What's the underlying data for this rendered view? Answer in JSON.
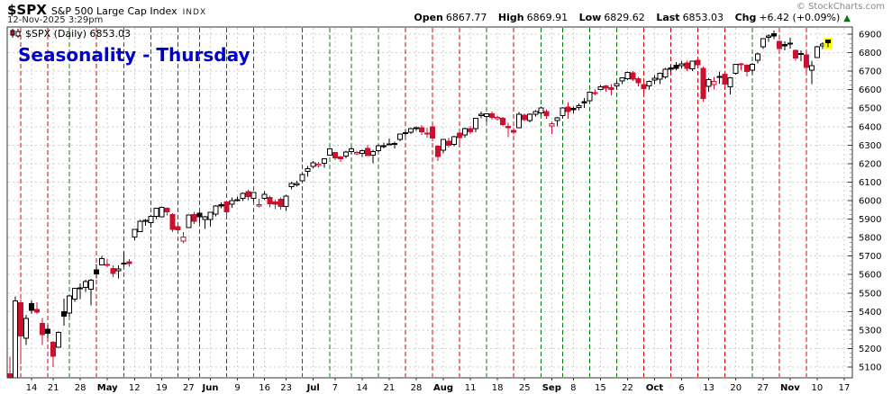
{
  "header": {
    "symbol": "$SPX",
    "name": "S&P 500 Large Cap Index",
    "exchange": "INDX",
    "datetime": "12-Nov-2025 3:29pm",
    "copyright": "© StockCharts.com",
    "quote": {
      "open_label": "Open",
      "open": "6867.77",
      "high_label": "High",
      "high": "6869.91",
      "low_label": "Low",
      "low": "6829.62",
      "last_label": "Last",
      "last": "6853.03",
      "chg_label": "Chg",
      "chg": "+6.42 (+0.09%)",
      "direction": "up",
      "arrow": "▲"
    }
  },
  "legend": {
    "text": "$SPX (Daily) 6853.03"
  },
  "annotation": {
    "text": "Seasonality - Thursday"
  },
  "colors": {
    "candle_down": "#cc102f",
    "candle_up_outline": "#000000",
    "thursday_up": "#008000",
    "thursday_down": "#e00000",
    "grid": "#cfcfcf",
    "axis": "#333333",
    "annotation_blue": "#0000cc",
    "last_candle_highlight": "#ffff00",
    "arrow_green": "#007a00"
  },
  "chart_data": {
    "type": "candlestick",
    "symbol": "$SPX",
    "timeframe": "Daily",
    "title": "Seasonality - Thursday",
    "ylim": [
      5100,
      6900
    ],
    "grid": true,
    "y_ticks": [
      6900,
      6800,
      6700,
      6600,
      6500,
      6400,
      6300,
      6200,
      6100,
      6000,
      5900,
      5800,
      5700,
      5600,
      5500,
      5400,
      5300,
      5200,
      5100
    ],
    "total_slots": 156,
    "prev_close": 5062,
    "x_labels": [
      {
        "i": 4,
        "label": "14"
      },
      {
        "i": 8,
        "label": "21"
      },
      {
        "i": 13,
        "label": "28"
      },
      {
        "i": 18,
        "label": "May"
      },
      {
        "i": 23,
        "label": "12"
      },
      {
        "i": 28,
        "label": "19"
      },
      {
        "i": 33,
        "label": "27"
      },
      {
        "i": 37,
        "label": "Jun"
      },
      {
        "i": 42,
        "label": "9"
      },
      {
        "i": 47,
        "label": "16"
      },
      {
        "i": 51,
        "label": "23"
      },
      {
        "i": 56,
        "label": "Jul"
      },
      {
        "i": 60,
        "label": "7"
      },
      {
        "i": 65,
        "label": "14"
      },
      {
        "i": 70,
        "label": "21"
      },
      {
        "i": 75,
        "label": "28"
      },
      {
        "i": 80,
        "label": "Aug"
      },
      {
        "i": 85,
        "label": "11"
      },
      {
        "i": 90,
        "label": "18"
      },
      {
        "i": 95,
        "label": "25"
      },
      {
        "i": 100,
        "label": "Sep"
      },
      {
        "i": 104,
        "label": "8"
      },
      {
        "i": 109,
        "label": "15"
      },
      {
        "i": 114,
        "label": "22"
      },
      {
        "i": 119,
        "label": "Oct"
      },
      {
        "i": 124,
        "label": "6"
      },
      {
        "i": 129,
        "label": "13"
      },
      {
        "i": 134,
        "label": "20"
      },
      {
        "i": 139,
        "label": "27"
      },
      {
        "i": 144,
        "label": "Nov"
      },
      {
        "i": 149,
        "label": "10"
      },
      {
        "i": 154,
        "label": "17"
      }
    ],
    "thursday_lines": [
      2,
      7,
      11,
      16,
      21,
      26,
      31,
      35,
      40,
      45,
      54,
      59,
      63,
      68,
      73,
      78,
      83,
      88,
      93,
      98,
      102,
      107,
      112,
      117,
      122,
      127,
      132,
      137,
      142,
      147
    ],
    "ohlc": [
      [
        "Apr 8",
        5063,
        5155,
        4910,
        4983
      ],
      [
        "Apr 9",
        4997,
        5481,
        4948,
        5457
      ],
      [
        "Apr 10",
        5448,
        5468,
        5115,
        5268
      ],
      [
        "Apr 11",
        5255,
        5381,
        5220,
        5363
      ],
      [
        "Apr 14",
        5442,
        5459,
        5386,
        5406
      ],
      [
        "Apr 15",
        5412,
        5450,
        5386,
        5397
      ],
      [
        "Apr 16",
        5335,
        5366,
        5220,
        5276
      ],
      [
        "Apr 17",
        5305,
        5328,
        5255,
        5283
      ],
      [
        "Apr 21",
        5233,
        5242,
        5101,
        5158
      ],
      [
        "Apr 22",
        5208,
        5293,
        5206,
        5288
      ],
      [
        "Apr 23",
        5398,
        5469,
        5323,
        5376
      ],
      [
        "Apr 24",
        5392,
        5490,
        5372,
        5485
      ],
      [
        "Apr 25",
        5467,
        5528,
        5452,
        5525
      ],
      [
        "Apr 28",
        5529,
        5553,
        5468,
        5529
      ],
      [
        "Apr 29",
        5531,
        5571,
        5506,
        5561
      ],
      [
        "Apr 30",
        5520,
        5577,
        5433,
        5569
      ],
      [
        "May 1",
        5625,
        5658,
        5580,
        5604
      ],
      [
        "May 2",
        5653,
        5700,
        5653,
        5687
      ],
      [
        "May 5",
        5655,
        5684,
        5640,
        5650
      ],
      [
        "May 6",
        5633,
        5650,
        5586,
        5607
      ],
      [
        "May 7",
        5620,
        5650,
        5578,
        5631
      ],
      [
        "May 8",
        5663,
        5720,
        5643,
        5663
      ],
      [
        "May 9",
        5670,
        5684,
        5643,
        5660
      ],
      [
        "May 12",
        5803,
        5845,
        5786,
        5844
      ],
      [
        "May 13",
        5831,
        5896,
        5831,
        5887
      ],
      [
        "May 14",
        5890,
        5901,
        5863,
        5893
      ],
      [
        "May 15",
        5882,
        5921,
        5854,
        5916
      ],
      [
        "May 16",
        5916,
        5958,
        5900,
        5958
      ],
      [
        "May 19",
        5913,
        5968,
        5910,
        5964
      ],
      [
        "May 20",
        5958,
        5963,
        5920,
        5940
      ],
      [
        "May 21",
        5925,
        5932,
        5830,
        5845
      ],
      [
        "May 22",
        5859,
        5872,
        5822,
        5842
      ],
      [
        "May 23",
        5781,
        5829,
        5768,
        5803
      ],
      [
        "May 27",
        5853,
        5925,
        5853,
        5922
      ],
      [
        "May 28",
        5925,
        5940,
        5873,
        5889
      ],
      [
        "May 29",
        5932,
        5939,
        5880,
        5912
      ],
      [
        "May 30",
        5899,
        5917,
        5847,
        5912
      ],
      [
        "Jun 2",
        5897,
        5939,
        5861,
        5936
      ],
      [
        "Jun 3",
        5927,
        5975,
        5914,
        5970
      ],
      [
        "Jun 4",
        5978,
        5990,
        5958,
        5971
      ],
      [
        "Jun 5",
        5992,
        5999,
        5904,
        5939
      ],
      [
        "Jun 6",
        5980,
        6016,
        5960,
        6000
      ],
      [
        "Jun 9",
        6001,
        6021,
        5994,
        6006
      ],
      [
        "Jun 10",
        6011,
        6043,
        5998,
        6039
      ],
      [
        "Jun 11",
        6049,
        6059,
        6002,
        6022
      ],
      [
        "Jun 12",
        6012,
        6045,
        5995,
        6045
      ],
      [
        "Jun 13",
        5973,
        6010,
        5963,
        5977
      ],
      [
        "Jun 16",
        6013,
        6050,
        6006,
        6033
      ],
      [
        "Jun 17",
        6018,
        6026,
        5963,
        5983
      ],
      [
        "Jun 18",
        5993,
        6005,
        5955,
        5981
      ],
      [
        "Jun 20",
        6007,
        6018,
        5952,
        5968
      ],
      [
        "Jun 23",
        5969,
        6031,
        5943,
        6025
      ],
      [
        "Jun 24",
        6076,
        6101,
        6060,
        6092
      ],
      [
        "Jun 25",
        6092,
        6108,
        6075,
        6092
      ],
      [
        "Jun 26",
        6108,
        6146,
        6101,
        6141
      ],
      [
        "Jun 27",
        6158,
        6188,
        6130,
        6173
      ],
      [
        "Jun 30",
        6186,
        6215,
        6174,
        6205
      ],
      [
        "Jul 1",
        6190,
        6210,
        6177,
        6198
      ],
      [
        "Jul 2",
        6203,
        6228,
        6177,
        6227
      ],
      [
        "Jul 3",
        6246,
        6284,
        6246,
        6279
      ],
      [
        "Jul 7",
        6260,
        6263,
        6219,
        6230
      ],
      [
        "Jul 8",
        6236,
        6242,
        6208,
        6226
      ],
      [
        "Jul 9",
        6241,
        6269,
        6229,
        6263
      ],
      [
        "Jul 10",
        6266,
        6290,
        6251,
        6280
      ],
      [
        "Jul 11",
        6255,
        6269,
        6245,
        6260
      ],
      [
        "Jul 14",
        6255,
        6277,
        6237,
        6269
      ],
      [
        "Jul 15",
        6282,
        6302,
        6240,
        6244
      ],
      [
        "Jul 16",
        6246,
        6276,
        6201,
        6264
      ],
      [
        "Jul 17",
        6270,
        6304,
        6262,
        6297
      ],
      [
        "Jul 18",
        6296,
        6315,
        6281,
        6297
      ],
      [
        "Jul 21",
        6307,
        6336,
        6298,
        6306
      ],
      [
        "Jul 22",
        6307,
        6318,
        6281,
        6310
      ],
      [
        "Jul 23",
        6330,
        6360,
        6322,
        6359
      ],
      [
        "Jul 24",
        6368,
        6381,
        6351,
        6363
      ],
      [
        "Jul 25",
        6369,
        6395,
        6360,
        6389
      ],
      [
        "Jul 28",
        6395,
        6401,
        6376,
        6390
      ],
      [
        "Jul 29",
        6395,
        6409,
        6355,
        6371
      ],
      [
        "Jul 30",
        6365,
        6394,
        6341,
        6363
      ],
      [
        "Jul 31",
        6400,
        6415,
        6320,
        6339
      ],
      [
        "Aug 1",
        6295,
        6299,
        6213,
        6238
      ],
      [
        "Aug 4",
        6272,
        6332,
        6256,
        6330
      ],
      [
        "Aug 5",
        6320,
        6341,
        6286,
        6299
      ],
      [
        "Aug 6",
        6305,
        6351,
        6295,
        6345
      ],
      [
        "Aug 7",
        6365,
        6371,
        6305,
        6340
      ],
      [
        "Aug 8",
        6356,
        6395,
        6341,
        6389
      ],
      [
        "Aug 11",
        6388,
        6404,
        6359,
        6373
      ],
      [
        "Aug 12",
        6389,
        6446,
        6369,
        6446
      ],
      [
        "Aug 13",
        6459,
        6481,
        6445,
        6466
      ],
      [
        "Aug 14",
        6455,
        6473,
        6426,
        6469
      ],
      [
        "Aug 15",
        6470,
        6481,
        6439,
        6450
      ],
      [
        "Aug 18",
        6442,
        6459,
        6432,
        6449
      ],
      [
        "Aug 19",
        6445,
        6453,
        6401,
        6411
      ],
      [
        "Aug 20",
        6402,
        6420,
        6343,
        6395
      ],
      [
        "Aug 21",
        6380,
        6394,
        6357,
        6370
      ],
      [
        "Aug 22",
        6395,
        6478,
        6391,
        6467
      ],
      [
        "Aug 25",
        6462,
        6471,
        6428,
        6439
      ],
      [
        "Aug 26",
        6433,
        6471,
        6424,
        6466
      ],
      [
        "Aug 27",
        6466,
        6488,
        6455,
        6481
      ],
      [
        "Aug 28",
        6474,
        6508,
        6461,
        6501
      ],
      [
        "Aug 29",
        6482,
        6494,
        6443,
        6460
      ],
      [
        "Sep 2",
        6404,
        6427,
        6360,
        6415
      ],
      [
        "Sep 3",
        6432,
        6453,
        6402,
        6448
      ],
      [
        "Sep 4",
        6459,
        6503,
        6446,
        6502
      ],
      [
        "Sep 5",
        6507,
        6533,
        6443,
        6481
      ],
      [
        "Sep 8",
        6498,
        6508,
        6472,
        6495
      ],
      [
        "Sep 9",
        6503,
        6525,
        6488,
        6513
      ],
      [
        "Sep 10",
        6534,
        6555,
        6500,
        6532
      ],
      [
        "Sep 11",
        6540,
        6590,
        6534,
        6587
      ],
      [
        "Sep 12",
        6585,
        6600,
        6569,
        6584
      ],
      [
        "Sep 15",
        6600,
        6626,
        6595,
        6615
      ],
      [
        "Sep 16",
        6620,
        6626,
        6589,
        6607
      ],
      [
        "Sep 17",
        6611,
        6630,
        6568,
        6600
      ],
      [
        "Sep 18",
        6620,
        6646,
        6601,
        6632
      ],
      [
        "Sep 19",
        6648,
        6666,
        6630,
        6664
      ],
      [
        "Sep 22",
        6659,
        6699,
        6653,
        6693
      ],
      [
        "Sep 23",
        6692,
        6700,
        6648,
        6656
      ],
      [
        "Sep 24",
        6660,
        6670,
        6619,
        6638
      ],
      [
        "Sep 25",
        6627,
        6641,
        6570,
        6605
      ],
      [
        "Sep 26",
        6621,
        6649,
        6601,
        6644
      ],
      [
        "Sep 29",
        6651,
        6679,
        6631,
        6661
      ],
      [
        "Sep 30",
        6656,
        6693,
        6631,
        6688
      ],
      [
        "Oct 1",
        6668,
        6718,
        6659,
        6711
      ],
      [
        "Oct 2",
        6717,
        6731,
        6693,
        6715
      ],
      [
        "Oct 3",
        6732,
        6750,
        6705,
        6716
      ],
      [
        "Oct 6",
        6729,
        6754,
        6715,
        6740
      ],
      [
        "Oct 7",
        6745,
        6756,
        6701,
        6715
      ],
      [
        "Oct 8",
        6713,
        6756,
        6700,
        6754
      ],
      [
        "Oct 9",
        6760,
        6764,
        6720,
        6735
      ],
      [
        "Oct 10",
        6715,
        6726,
        6536,
        6553
      ],
      [
        "Oct 13",
        6617,
        6661,
        6589,
        6654
      ],
      [
        "Oct 14",
        6628,
        6670,
        6600,
        6644
      ],
      [
        "Oct 15",
        6672,
        6697,
        6632,
        6671
      ],
      [
        "Oct 16",
        6684,
        6696,
        6608,
        6629
      ],
      [
        "Oct 17",
        6616,
        6669,
        6575,
        6664
      ],
      [
        "Oct 20",
        6689,
        6738,
        6682,
        6736
      ],
      [
        "Oct 21",
        6740,
        6745,
        6704,
        6735
      ],
      [
        "Oct 22",
        6733,
        6737,
        6671,
        6699
      ],
      [
        "Oct 23",
        6706,
        6745,
        6683,
        6738
      ],
      [
        "Oct 24",
        6760,
        6800,
        6743,
        6792
      ],
      [
        "Oct 27",
        6832,
        6877,
        6820,
        6875
      ],
      [
        "Oct 28",
        6882,
        6899,
        6859,
        6890
      ],
      [
        "Oct 29",
        6902,
        6920,
        6874,
        6891
      ],
      [
        "Oct 30",
        6860,
        6866,
        6814,
        6822
      ],
      [
        "Oct 31",
        6843,
        6862,
        6812,
        6840
      ],
      [
        "Nov 3",
        6850,
        6880,
        6821,
        6852
      ],
      [
        "Nov 4",
        6812,
        6818,
        6757,
        6772
      ],
      [
        "Nov 5",
        6790,
        6812,
        6754,
        6796
      ],
      [
        "Nov 6",
        6787,
        6795,
        6695,
        6720
      ],
      [
        "Nov 7",
        6706,
        6757,
        6631,
        6729
      ],
      [
        "Nov 10",
        6773,
        6837,
        6773,
        6833
      ],
      [
        "Nov 11",
        6837,
        6857,
        6820,
        6847
      ],
      [
        "Nov 12",
        6868,
        6870,
        6830,
        6853
      ]
    ]
  }
}
